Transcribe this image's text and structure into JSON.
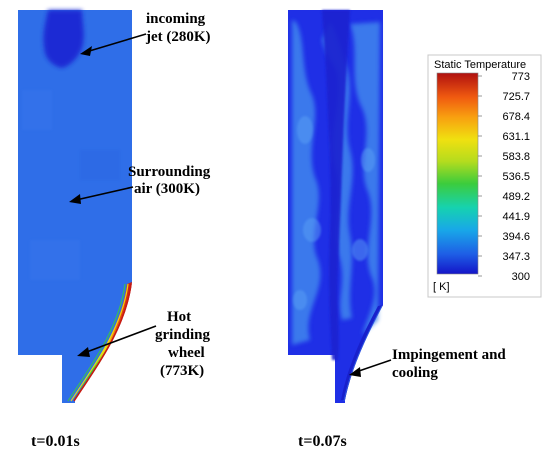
{
  "panels": [
    {
      "time_label": "t=0.01s"
    },
    {
      "time_label": "t=0.07s"
    }
  ],
  "annotations": {
    "jet": [
      "incoming",
      "jet (280K)"
    ],
    "air": [
      "Surrounding",
      "air (300K)"
    ],
    "wheel": [
      "Hot",
      "grinding",
      "wheel",
      "(773K)"
    ],
    "impingement": [
      "Impingement and",
      "cooling"
    ]
  },
  "legend": {
    "title": "Static Temperature",
    "unit": "[ K]",
    "ticks": [
      "773",
      "725.7",
      "678.4",
      "631.1",
      "583.8",
      "536.5",
      "489.2",
      "441.9",
      "394.6",
      "347.3",
      "300"
    ]
  },
  "colors": {
    "ambient": "#2f6ee8",
    "cool": "#1f2fe6",
    "hot": "#c81a12",
    "scale": [
      "#1414c8",
      "#1e5fe6",
      "#18a8e8",
      "#16d2b0",
      "#3ccc3c",
      "#b4dc1e",
      "#f0e010",
      "#f8a010",
      "#f05a10",
      "#d21e14",
      "#a00f0f"
    ]
  }
}
